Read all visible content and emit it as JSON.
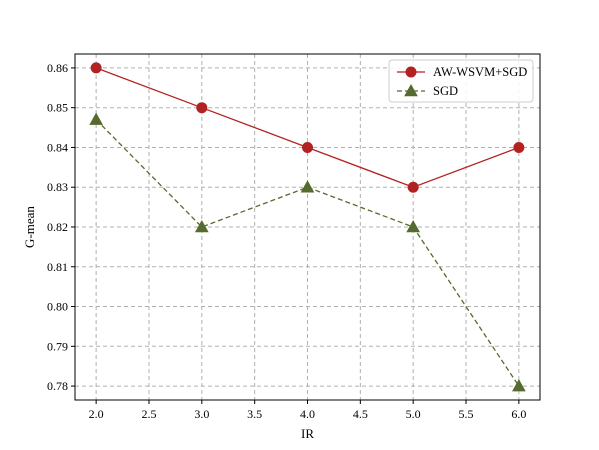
{
  "chart_data": {
    "type": "line",
    "x": [
      2.0,
      3.0,
      4.0,
      5.0,
      6.0
    ],
    "xlabel": "IR",
    "ylabel": "G-mean",
    "xlim": [
      1.8,
      6.2
    ],
    "ylim": [
      0.7765,
      0.8635
    ],
    "xticks": [
      "2.0",
      "2.5",
      "3.0",
      "3.5",
      "4.0",
      "4.5",
      "5.0",
      "5.5",
      "6.0"
    ],
    "yticks": [
      "0.78",
      "0.79",
      "0.80",
      "0.81",
      "0.82",
      "0.83",
      "0.84",
      "0.85",
      "0.86"
    ],
    "grid": true,
    "legend_position": "top-right",
    "series": [
      {
        "name": "AW-WSVM+SGD",
        "values": [
          0.86,
          0.85,
          0.84,
          0.83,
          0.84
        ],
        "color": "#b22222",
        "marker": "circle",
        "linestyle": "solid"
      },
      {
        "name": "SGD",
        "values": [
          0.847,
          0.82,
          0.83,
          0.82,
          0.78
        ],
        "color": "#556b2f",
        "marker": "triangle",
        "linestyle": "dashed"
      }
    ]
  }
}
